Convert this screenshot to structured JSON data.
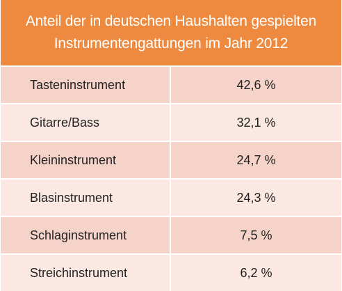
{
  "table": {
    "title_line1": "Anteil der in deutschen Haushalten gespielten",
    "title_line2": "Instrumentengattungen im Jahr 2012"
  },
  "colors": {
    "header_bg": "#ee8a3f",
    "header_text": "#ffffff",
    "row_dark": "#f6d3c9",
    "row_light": "#fbe8e3"
  },
  "chart_data": {
    "type": "table",
    "title": "Anteil der in deutschen Haushalten gespielten Instrumentengattungen im Jahr 2012",
    "columns": [],
    "rows": [
      {
        "label": "Tasteninstrument",
        "value_text": "42,6 %",
        "value": 42.6
      },
      {
        "label": "Gitarre/Bass",
        "value_text": "32,1 %",
        "value": 32.1
      },
      {
        "label": "Kleininstrument",
        "value_text": "24,7 %",
        "value": 24.7
      },
      {
        "label": "Blasinstrument",
        "value_text": "24,3 %",
        "value": 24.3
      },
      {
        "label": "Schlaginstrument",
        "value_text": "7,5 %",
        "value": 7.5
      },
      {
        "label": "Streichinstrument",
        "value_text": "6,2 %",
        "value": 6.2
      }
    ]
  }
}
